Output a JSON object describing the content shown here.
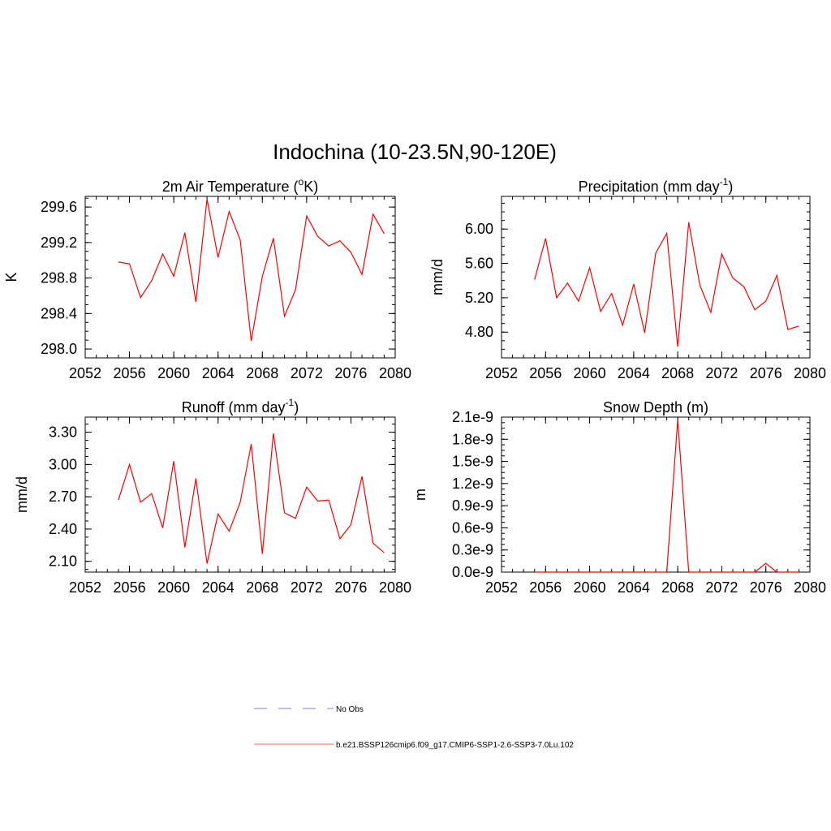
{
  "title": "Indochina (10-23.5N,90-120E)",
  "legend": {
    "items": [
      {
        "label": "No Obs",
        "color": "#9999dd",
        "style": "dashed"
      },
      {
        "label": "b.e21.BSSP126cmip6.f09_g17.CMIP6-SSP1-2.6-SSP3-7.0Lu.102",
        "color": "#ff8080",
        "style": "solid"
      }
    ]
  },
  "colors": {
    "series": "#ff0000",
    "axis": "#000000"
  },
  "chart_data": [
    {
      "type": "line",
      "title": "2m Air Temperature (",
      "title_sup": "o",
      "title_after": "K)",
      "ylabel": "K",
      "xlim": [
        2052,
        2080
      ],
      "ylim": [
        297.9,
        299.72
      ],
      "xticks": [
        2052,
        2056,
        2060,
        2064,
        2068,
        2072,
        2076,
        2080
      ],
      "xtick_labels": [
        "2052",
        "2056",
        "2060",
        "2064",
        "2068",
        "2072",
        "2076",
        "2080"
      ],
      "yticks": [
        298.0,
        298.4,
        298.8,
        299.2,
        299.6
      ],
      "ytick_labels": [
        "298.0",
        "298.4",
        "298.8",
        "299.2",
        "299.6"
      ],
      "x": [
        2055,
        2056,
        2057,
        2058,
        2059,
        2060,
        2061,
        2062,
        2063,
        2064,
        2065,
        2066,
        2067,
        2068,
        2069,
        2070,
        2071,
        2072,
        2073,
        2074,
        2075,
        2076,
        2077,
        2078,
        2079
      ],
      "series": [
        {
          "values": [
            298.98,
            298.96,
            298.58,
            298.77,
            299.07,
            298.82,
            299.31,
            298.53,
            299.69,
            299.03,
            299.55,
            299.23,
            298.09,
            298.82,
            299.25,
            298.37,
            298.67,
            299.5,
            299.27,
            299.16,
            299.22,
            299.09,
            298.84,
            299.52,
            299.3
          ]
        }
      ]
    },
    {
      "type": "line",
      "title": "Precipitation (mm day",
      "title_sup": "-1",
      "title_after": ")",
      "ylabel": "mm/d",
      "xlim": [
        2052,
        2080
      ],
      "ylim": [
        4.5,
        6.38
      ],
      "xticks": [
        2052,
        2056,
        2060,
        2064,
        2068,
        2072,
        2076,
        2080
      ],
      "xtick_labels": [
        "2052",
        "2056",
        "2060",
        "2064",
        "2068",
        "2072",
        "2076",
        "2080"
      ],
      "yticks": [
        4.8,
        5.2,
        5.6,
        6.0
      ],
      "ytick_labels": [
        "4.80",
        "5.20",
        "5.60",
        "6.00"
      ],
      "x": [
        2055,
        2056,
        2057,
        2058,
        2059,
        2060,
        2061,
        2062,
        2063,
        2064,
        2065,
        2066,
        2067,
        2068,
        2069,
        2070,
        2071,
        2072,
        2073,
        2074,
        2075,
        2076,
        2077,
        2078,
        2079
      ],
      "series": [
        {
          "values": [
            5.41,
            5.89,
            5.2,
            5.37,
            5.16,
            5.55,
            5.04,
            5.25,
            4.88,
            5.36,
            4.79,
            5.72,
            5.95,
            4.63,
            6.08,
            5.35,
            5.03,
            5.71,
            5.43,
            5.33,
            5.06,
            5.16,
            5.46,
            4.83,
            4.87
          ]
        }
      ]
    },
    {
      "type": "line",
      "title": "Runoff (mm day",
      "title_sup": "-1",
      "title_after": ")",
      "ylabel": "mm/d",
      "xlim": [
        2052,
        2080
      ],
      "ylim": [
        2.0,
        3.44
      ],
      "xticks": [
        2052,
        2056,
        2060,
        2064,
        2068,
        2072,
        2076,
        2080
      ],
      "xtick_labels": [
        "2052",
        "2056",
        "2060",
        "2064",
        "2068",
        "2072",
        "2076",
        "2080"
      ],
      "yticks": [
        2.1,
        2.4,
        2.7,
        3.0,
        3.3
      ],
      "ytick_labels": [
        "2.10",
        "2.40",
        "2.70",
        "3.00",
        "3.30"
      ],
      "x": [
        2055,
        2056,
        2057,
        2058,
        2059,
        2060,
        2061,
        2062,
        2063,
        2064,
        2065,
        2066,
        2067,
        2068,
        2069,
        2070,
        2071,
        2072,
        2073,
        2074,
        2075,
        2076,
        2077,
        2078,
        2079
      ],
      "series": [
        {
          "values": [
            2.67,
            3.0,
            2.65,
            2.73,
            2.41,
            3.03,
            2.23,
            2.87,
            2.08,
            2.54,
            2.38,
            2.65,
            3.19,
            2.17,
            3.29,
            2.55,
            2.5,
            2.79,
            2.66,
            2.67,
            2.31,
            2.44,
            2.89,
            2.27,
            2.18
          ]
        }
      ]
    },
    {
      "type": "line",
      "title": "Snow Depth (m)",
      "title_sup": "",
      "title_after": "",
      "ylabel": "m",
      "xlim": [
        2052,
        2080
      ],
      "ylim": [
        0,
        2.1e-09
      ],
      "xticks": [
        2052,
        2056,
        2060,
        2064,
        2068,
        2072,
        2076,
        2080
      ],
      "xtick_labels": [
        "2052",
        "2056",
        "2060",
        "2064",
        "2068",
        "2072",
        "2076",
        "2080"
      ],
      "yticks": [
        0,
        3e-10,
        6e-10,
        9e-10,
        1.2e-09,
        1.5e-09,
        1.8e-09,
        2.1e-09
      ],
      "ytick_labels": [
        "0.0e-9",
        "0.3e-9",
        "0.6e-9",
        "0.9e-9",
        "1.2e-9",
        "1.5e-9",
        "1.8e-9",
        "2.1e-9"
      ],
      "x": [
        2055,
        2056,
        2057,
        2058,
        2059,
        2060,
        2061,
        2062,
        2063,
        2064,
        2065,
        2066,
        2067,
        2068,
        2069,
        2070,
        2071,
        2072,
        2073,
        2074,
        2075,
        2076,
        2077,
        2078,
        2079
      ],
      "series": [
        {
          "values": [
            0,
            0,
            0,
            0,
            0,
            0,
            0,
            0,
            0,
            0,
            0,
            0,
            0,
            2.06e-09,
            0,
            0,
            0,
            0,
            0,
            0,
            0,
            1.2e-10,
            0,
            0,
            0
          ]
        }
      ]
    }
  ]
}
